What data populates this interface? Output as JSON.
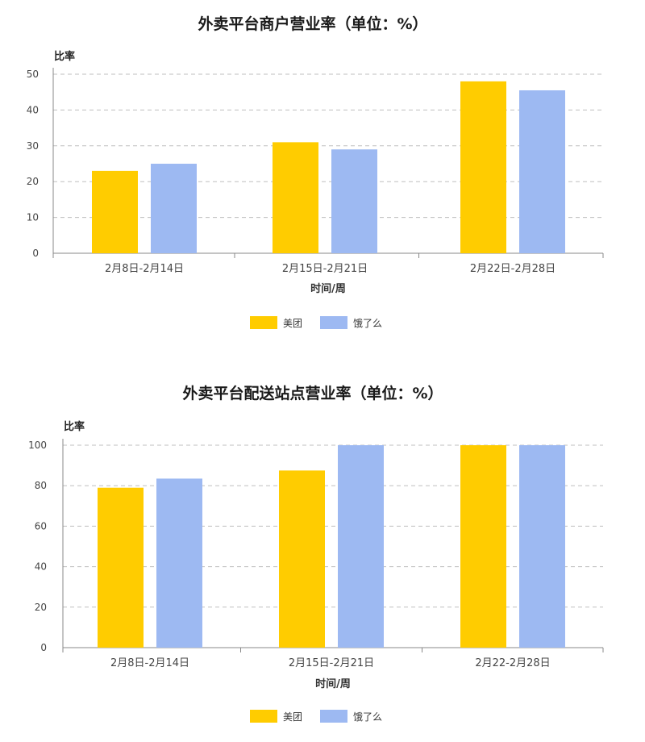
{
  "colors": {
    "meituan": "#FFCC00",
    "eleme": "#9DB9F2",
    "grid": "#BFBFBF",
    "axis": "#888888"
  },
  "chart_data": [
    {
      "type": "bar",
      "title": "外卖平台商户营业率（单位：%）",
      "ylabel": "比率",
      "xlabel": "时间/周",
      "categories": [
        "2月8日-2月14日",
        "2月15日-2月21日",
        "2月22日-2月28日"
      ],
      "ylim": [
        0,
        50
      ],
      "yticks": [
        0,
        10,
        20,
        30,
        40,
        50
      ],
      "grid": true,
      "legend_position": "bottom",
      "series": [
        {
          "name": "美团",
          "color_key": "meituan",
          "values": [
            23,
            31,
            48
          ]
        },
        {
          "name": "饿了么",
          "color_key": "eleme",
          "values": [
            25,
            29,
            45.5
          ]
        }
      ]
    },
    {
      "type": "bar",
      "title": "外卖平台配送站点营业率（单位：%）",
      "ylabel": "比率",
      "xlabel": "时间/周",
      "categories": [
        "2月8日-2月14日",
        "2月15日-2月21日",
        "2月22-2月28日"
      ],
      "ylim": [
        0,
        100
      ],
      "yticks": [
        0,
        20,
        40,
        60,
        80,
        100
      ],
      "grid": true,
      "legend_position": "bottom",
      "series": [
        {
          "name": "美团",
          "color_key": "meituan",
          "values": [
            79,
            87.5,
            100
          ]
        },
        {
          "name": "饿了么",
          "color_key": "eleme",
          "values": [
            83.5,
            100,
            100
          ]
        }
      ]
    }
  ]
}
